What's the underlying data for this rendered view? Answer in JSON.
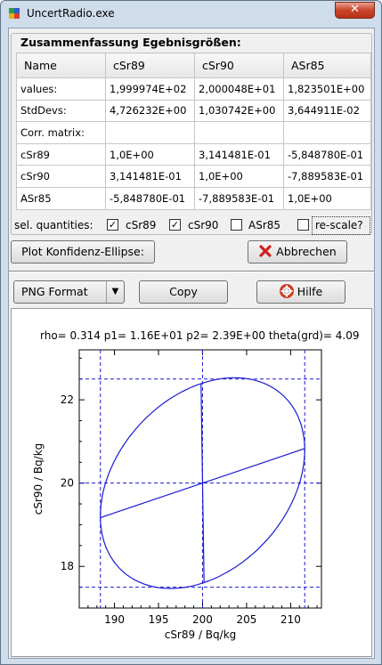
{
  "window": {
    "title": "UncertRadio.exe",
    "close_glyph": "✕"
  },
  "summary": {
    "group_title": "Zusammenfassung Egebnisgrößen:",
    "headers": [
      "Name",
      "cSr89",
      "cSr90",
      "ASr85"
    ],
    "rows": [
      [
        "values:",
        "1,999974E+02",
        "2,000048E+01",
        "1,823501E+00"
      ],
      [
        "StdDevs:",
        "4,726232E+00",
        "1,030742E+00",
        "3,644911E-02"
      ],
      [
        "Corr. matrix:",
        "",
        "",
        ""
      ],
      [
        "cSr89",
        "1,0E+00",
        "3,141481E-01",
        "-5,848780E-01"
      ],
      [
        "cSr90",
        "3,141481E-01",
        "1,0E+00",
        "-7,889583E-01"
      ],
      [
        "ASr85",
        "-5,848780E-01",
        "-7,889583E-01",
        "1,0E+00"
      ]
    ]
  },
  "selection": {
    "label": "sel. quantities:",
    "items": [
      {
        "label": "cSr89",
        "checked": true
      },
      {
        "label": "cSr90",
        "checked": true
      },
      {
        "label": "ASr85",
        "checked": false
      }
    ],
    "rescale": {
      "label": "re-scale?",
      "checked": false
    }
  },
  "buttons": {
    "plot": "Plot Konfidenz-Ellipse:",
    "cancel": "Abbrechen",
    "copy": "Copy",
    "help": "Hilfe"
  },
  "format_select": {
    "value": "PNG Format"
  },
  "chart_data": {
    "type": "scatter",
    "annotation": "rho= 0.314 p1= 1.16E+01 p2= 2.39E+00 theta(grd)=  4.09",
    "xlabel": "cSr89 / Bq/kg",
    "ylabel": "cSr90 / Bq/kg",
    "xlim": [
      186,
      213.5
    ],
    "ylim": [
      17,
      23.2
    ],
    "xticks": [
      190,
      195,
      200,
      205,
      210
    ],
    "yticks": [
      18,
      20,
      22
    ],
    "center": [
      199.9974,
      20.00048
    ],
    "ellipse": {
      "semi_axis_1": 11.6,
      "semi_axis_2": 2.39,
      "theta_deg": 4.09,
      "kind": "confidence ellipse"
    },
    "limit_lines": {
      "x": [
        188.4,
        211.6
      ],
      "y": [
        17.5,
        22.5
      ]
    },
    "axis_lines": {
      "major_axis": [
        [
          188.4,
          19.17
        ],
        [
          211.6,
          20.83
        ]
      ],
      "minor_axis": [
        [
          200.17,
          17.61
        ],
        [
          199.83,
          22.39
        ]
      ]
    },
    "grid": false,
    "colors": {
      "curve": "#1a1ad6",
      "dashed": "#1a1ad6"
    }
  }
}
